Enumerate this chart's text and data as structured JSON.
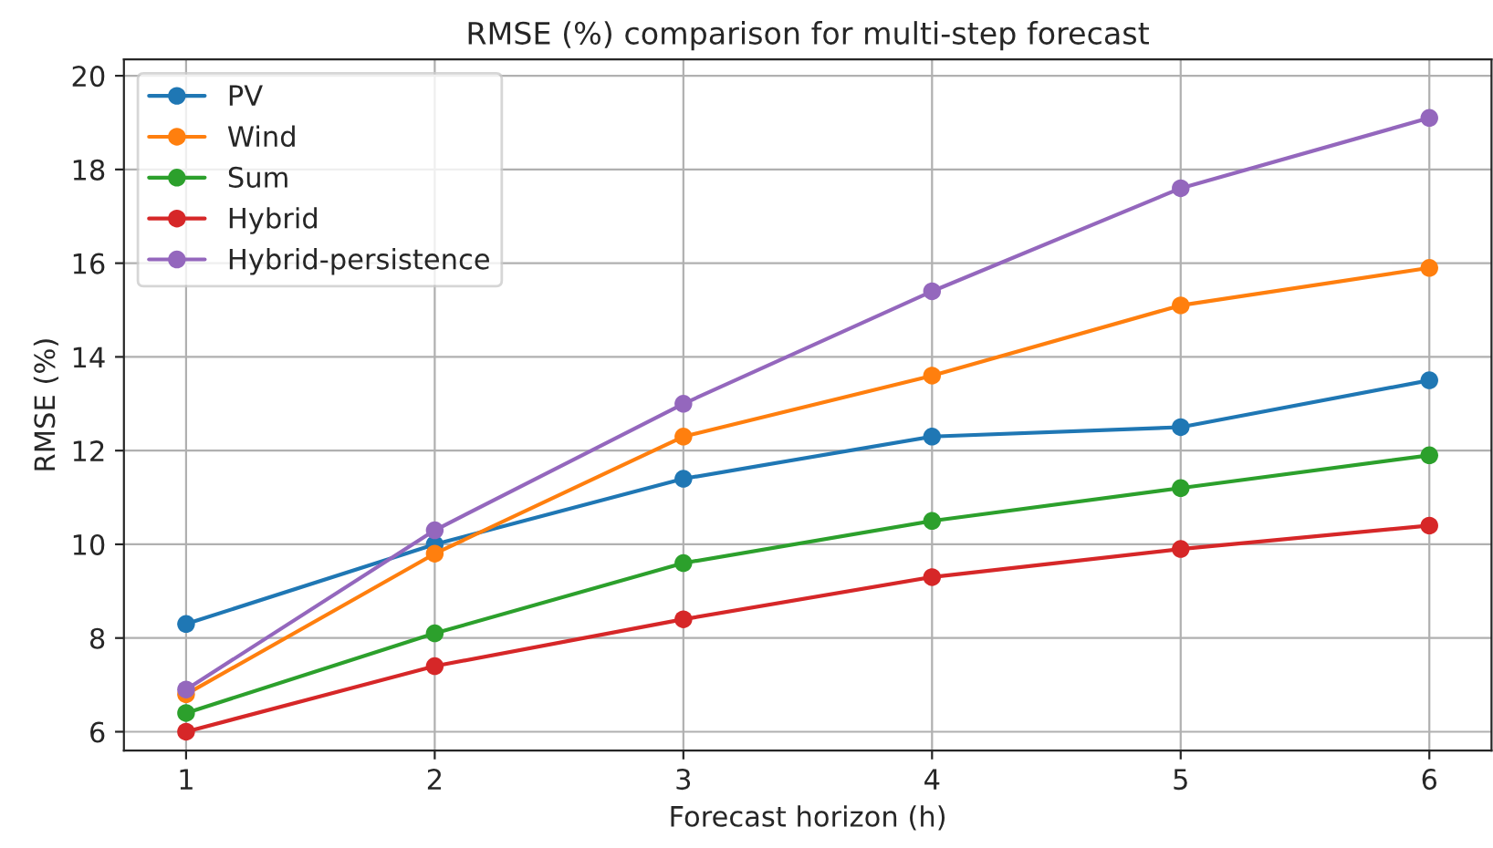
{
  "chart_data": {
    "type": "line",
    "title": "RMSE (%) comparison for multi-step forecast",
    "xlabel": "Forecast horizon (h)",
    "ylabel": "RMSE (%)",
    "x": [
      1,
      2,
      3,
      4,
      5,
      6
    ],
    "xlim": [
      0.75,
      6.25
    ],
    "xticks": [
      1,
      2,
      3,
      4,
      5,
      6
    ],
    "ylim": [
      5.6,
      20.35
    ],
    "yticks": [
      6,
      8,
      10,
      12,
      14,
      16,
      18,
      20
    ],
    "grid": true,
    "legend": "top left",
    "marker": "circle",
    "line_style": "solid",
    "series": [
      {
        "name": "PV",
        "color": "#1f77b4",
        "values": [
          8.3,
          10.0,
          11.4,
          12.3,
          12.5,
          13.5
        ]
      },
      {
        "name": "Wind",
        "color": "#ff7f0e",
        "values": [
          6.8,
          9.8,
          12.3,
          13.6,
          15.1,
          15.9
        ]
      },
      {
        "name": "Sum",
        "color": "#2ca02c",
        "values": [
          6.4,
          8.1,
          9.6,
          10.5,
          11.2,
          11.9
        ]
      },
      {
        "name": "Hybrid",
        "color": "#d62728",
        "values": [
          6.0,
          7.4,
          8.4,
          9.3,
          9.9,
          10.4
        ]
      },
      {
        "name": "Hybrid-persistence",
        "color": "#9467bd",
        "values": [
          6.9,
          10.3,
          13.0,
          15.4,
          17.6,
          19.1
        ]
      }
    ]
  }
}
